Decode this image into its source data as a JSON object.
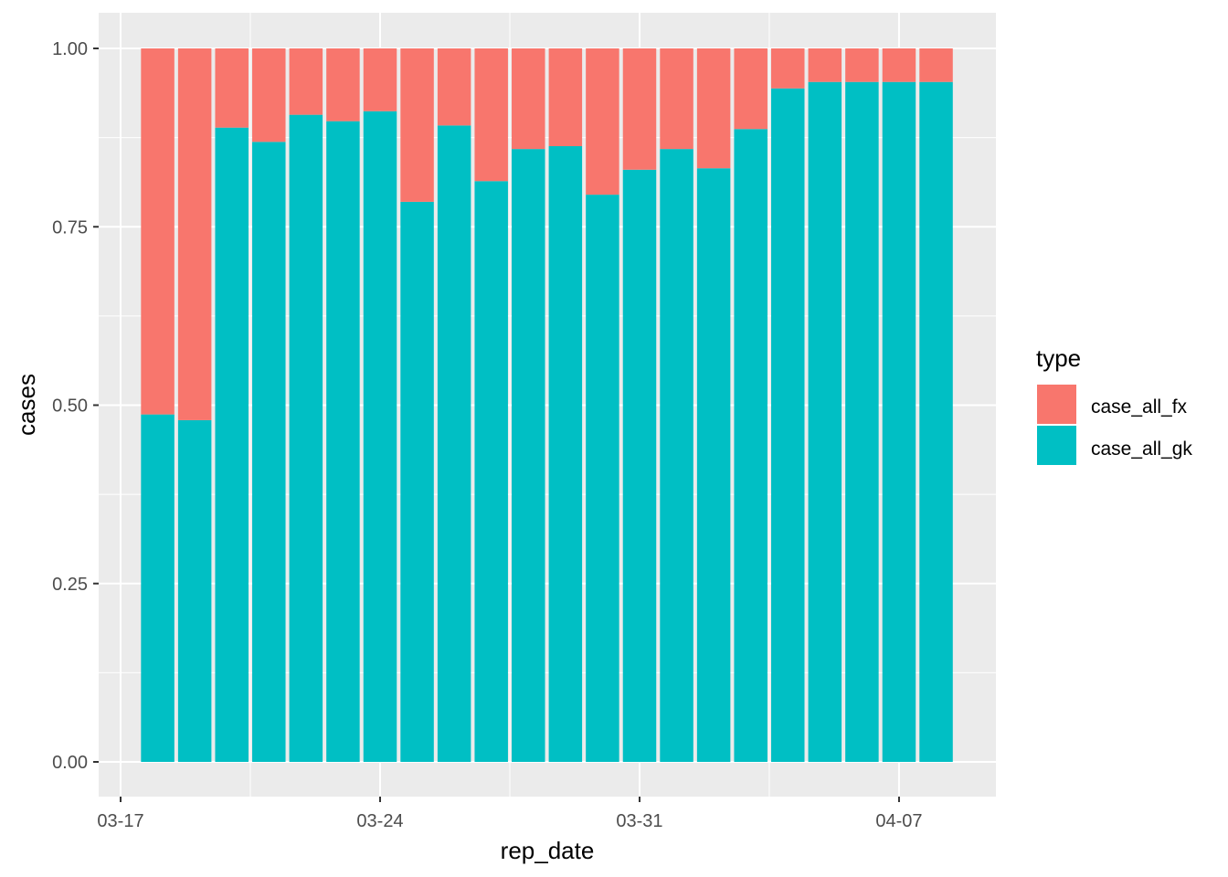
{
  "chart_data": {
    "type": "bar",
    "stacked": "fill",
    "title": "",
    "xlabel": "rep_date",
    "ylabel": "cases",
    "categories": [
      "03-18",
      "03-19",
      "03-20",
      "03-21",
      "03-22",
      "03-23",
      "03-24",
      "03-25",
      "03-26",
      "03-27",
      "03-28",
      "03-29",
      "03-30",
      "03-31",
      "04-01",
      "04-02",
      "04-03",
      "04-04",
      "04-05",
      "04-06",
      "04-07",
      "04-08"
    ],
    "x_ticks": [
      "03-17",
      "03-24",
      "03-31",
      "04-07"
    ],
    "y_ticks": [
      "0.00",
      "0.25",
      "0.50",
      "0.75",
      "1.00"
    ],
    "ylim": [
      0,
      1
    ],
    "grid": true,
    "legend": {
      "title": "type",
      "position": "right"
    },
    "series": [
      {
        "name": "case_all_fx",
        "color": "#F8766D",
        "values": [
          0.513,
          0.521,
          0.111,
          0.131,
          0.093,
          0.102,
          0.088,
          0.215,
          0.108,
          0.186,
          0.141,
          0.137,
          0.205,
          0.17,
          0.141,
          0.168,
          0.113,
          0.056,
          0.047,
          0.047,
          0.047,
          0.047
        ]
      },
      {
        "name": "case_all_gk",
        "color": "#00BFC4",
        "values": [
          0.487,
          0.479,
          0.889,
          0.869,
          0.907,
          0.898,
          0.912,
          0.785,
          0.892,
          0.814,
          0.859,
          0.863,
          0.795,
          0.83,
          0.859,
          0.832,
          0.887,
          0.944,
          0.953,
          0.953,
          0.953,
          0.953
        ]
      }
    ]
  }
}
